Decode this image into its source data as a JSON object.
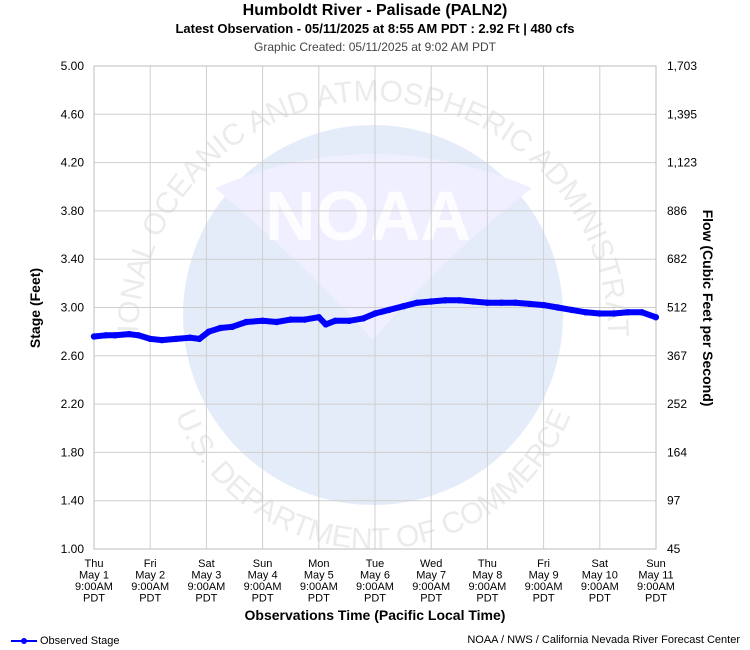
{
  "header": {
    "title": "Humboldt River - Palisade (PALN2)",
    "subtitle": "Latest Observation - 05/11/2025 at 8:55 AM PDT : 2.92 Ft | 480 cfs",
    "created": "Graphic Created: 05/11/2025 at 9:02 AM PDT"
  },
  "watermark": {
    "ring_text_top": "NATIONAL OCEANIC AND ATMOSPHERIC ADMINISTRATION",
    "ring_text_bottom": "U.S. DEPARTMENT OF COMMERCE",
    "logo_text": "NOAA"
  },
  "chart_data": {
    "type": "line",
    "xlabel": "Observations Time (Pacific Local Time)",
    "ylabel": "Stage (Feet)",
    "y2label": "Flow (Cubic Feet per Second)",
    "ylim": [
      1.0,
      5.0
    ],
    "y_ticks": [
      "1.00",
      "1.40",
      "1.80",
      "2.20",
      "2.60",
      "3.00",
      "3.40",
      "3.80",
      "4.20",
      "4.60",
      "5.00"
    ],
    "y2_ticks": [
      "45",
      "97",
      "164",
      "252",
      "367",
      "512",
      "682",
      "886",
      "1,123",
      "1,395",
      "1,703"
    ],
    "x_ticks": [
      {
        "day": "Thu",
        "date": "May 1",
        "time": "9:00AM",
        "tz": "PDT"
      },
      {
        "day": "Fri",
        "date": "May 2",
        "time": "9:00AM",
        "tz": "PDT"
      },
      {
        "day": "Sat",
        "date": "May 3",
        "time": "9:00AM",
        "tz": "PDT"
      },
      {
        "day": "Sun",
        "date": "May 4",
        "time": "9:00AM",
        "tz": "PDT"
      },
      {
        "day": "Mon",
        "date": "May 5",
        "time": "9:00AM",
        "tz": "PDT"
      },
      {
        "day": "Tue",
        "date": "May 6",
        "time": "9:00AM",
        "tz": "PDT"
      },
      {
        "day": "Wed",
        "date": "May 7",
        "time": "9:00AM",
        "tz": "PDT"
      },
      {
        "day": "Thu",
        "date": "May 8",
        "time": "9:00AM",
        "tz": "PDT"
      },
      {
        "day": "Fri",
        "date": "May 9",
        "time": "9:00AM",
        "tz": "PDT"
      },
      {
        "day": "Sat",
        "date": "May 10",
        "time": "9:00AM",
        "tz": "PDT"
      },
      {
        "day": "Sun",
        "date": "May 11",
        "time": "9:00AM",
        "tz": "PDT"
      }
    ],
    "grid": true,
    "legend_position": "bottom-left",
    "series": [
      {
        "name": "Observed Stage",
        "color": "#0000ff",
        "x": [
          "2025-05-01 09:00",
          "2025-05-01 14:00",
          "2025-05-01 18:00",
          "2025-05-02 00:00",
          "2025-05-02 04:00",
          "2025-05-02 09:00",
          "2025-05-02 14:00",
          "2025-05-02 20:00",
          "2025-05-03 02:00",
          "2025-05-03 06:00",
          "2025-05-03 10:00",
          "2025-05-03 15:00",
          "2025-05-03 20:00",
          "2025-05-04 02:00",
          "2025-05-04 09:00",
          "2025-05-04 15:00",
          "2025-05-04 21:00",
          "2025-05-05 03:00",
          "2025-05-05 09:00",
          "2025-05-05 12:00",
          "2025-05-05 16:00",
          "2025-05-05 22:00",
          "2025-05-06 04:00",
          "2025-05-06 09:00",
          "2025-05-06 15:00",
          "2025-05-06 21:00",
          "2025-05-07 03:00",
          "2025-05-07 09:00",
          "2025-05-07 15:00",
          "2025-05-07 21:00",
          "2025-05-08 03:00",
          "2025-05-08 09:00",
          "2025-05-08 15:00",
          "2025-05-08 21:00",
          "2025-05-09 03:00",
          "2025-05-09 09:00",
          "2025-05-09 15:00",
          "2025-05-09 21:00",
          "2025-05-10 03:00",
          "2025-05-10 09:00",
          "2025-05-10 15:00",
          "2025-05-10 21:00",
          "2025-05-11 03:00",
          "2025-05-11 08:55"
        ],
        "values": [
          2.76,
          2.77,
          2.77,
          2.78,
          2.77,
          2.74,
          2.73,
          2.74,
          2.75,
          2.74,
          2.8,
          2.83,
          2.84,
          2.88,
          2.89,
          2.88,
          2.9,
          2.9,
          2.92,
          2.86,
          2.89,
          2.89,
          2.91,
          2.95,
          2.98,
          3.01,
          3.04,
          3.05,
          3.06,
          3.06,
          3.05,
          3.04,
          3.04,
          3.04,
          3.03,
          3.02,
          3.0,
          2.98,
          2.96,
          2.95,
          2.95,
          2.96,
          2.96,
          2.92
        ]
      }
    ]
  },
  "footer": {
    "legend_label": "Observed Stage",
    "credit": "NOAA / NWS / California Nevada River Forecast Center"
  }
}
